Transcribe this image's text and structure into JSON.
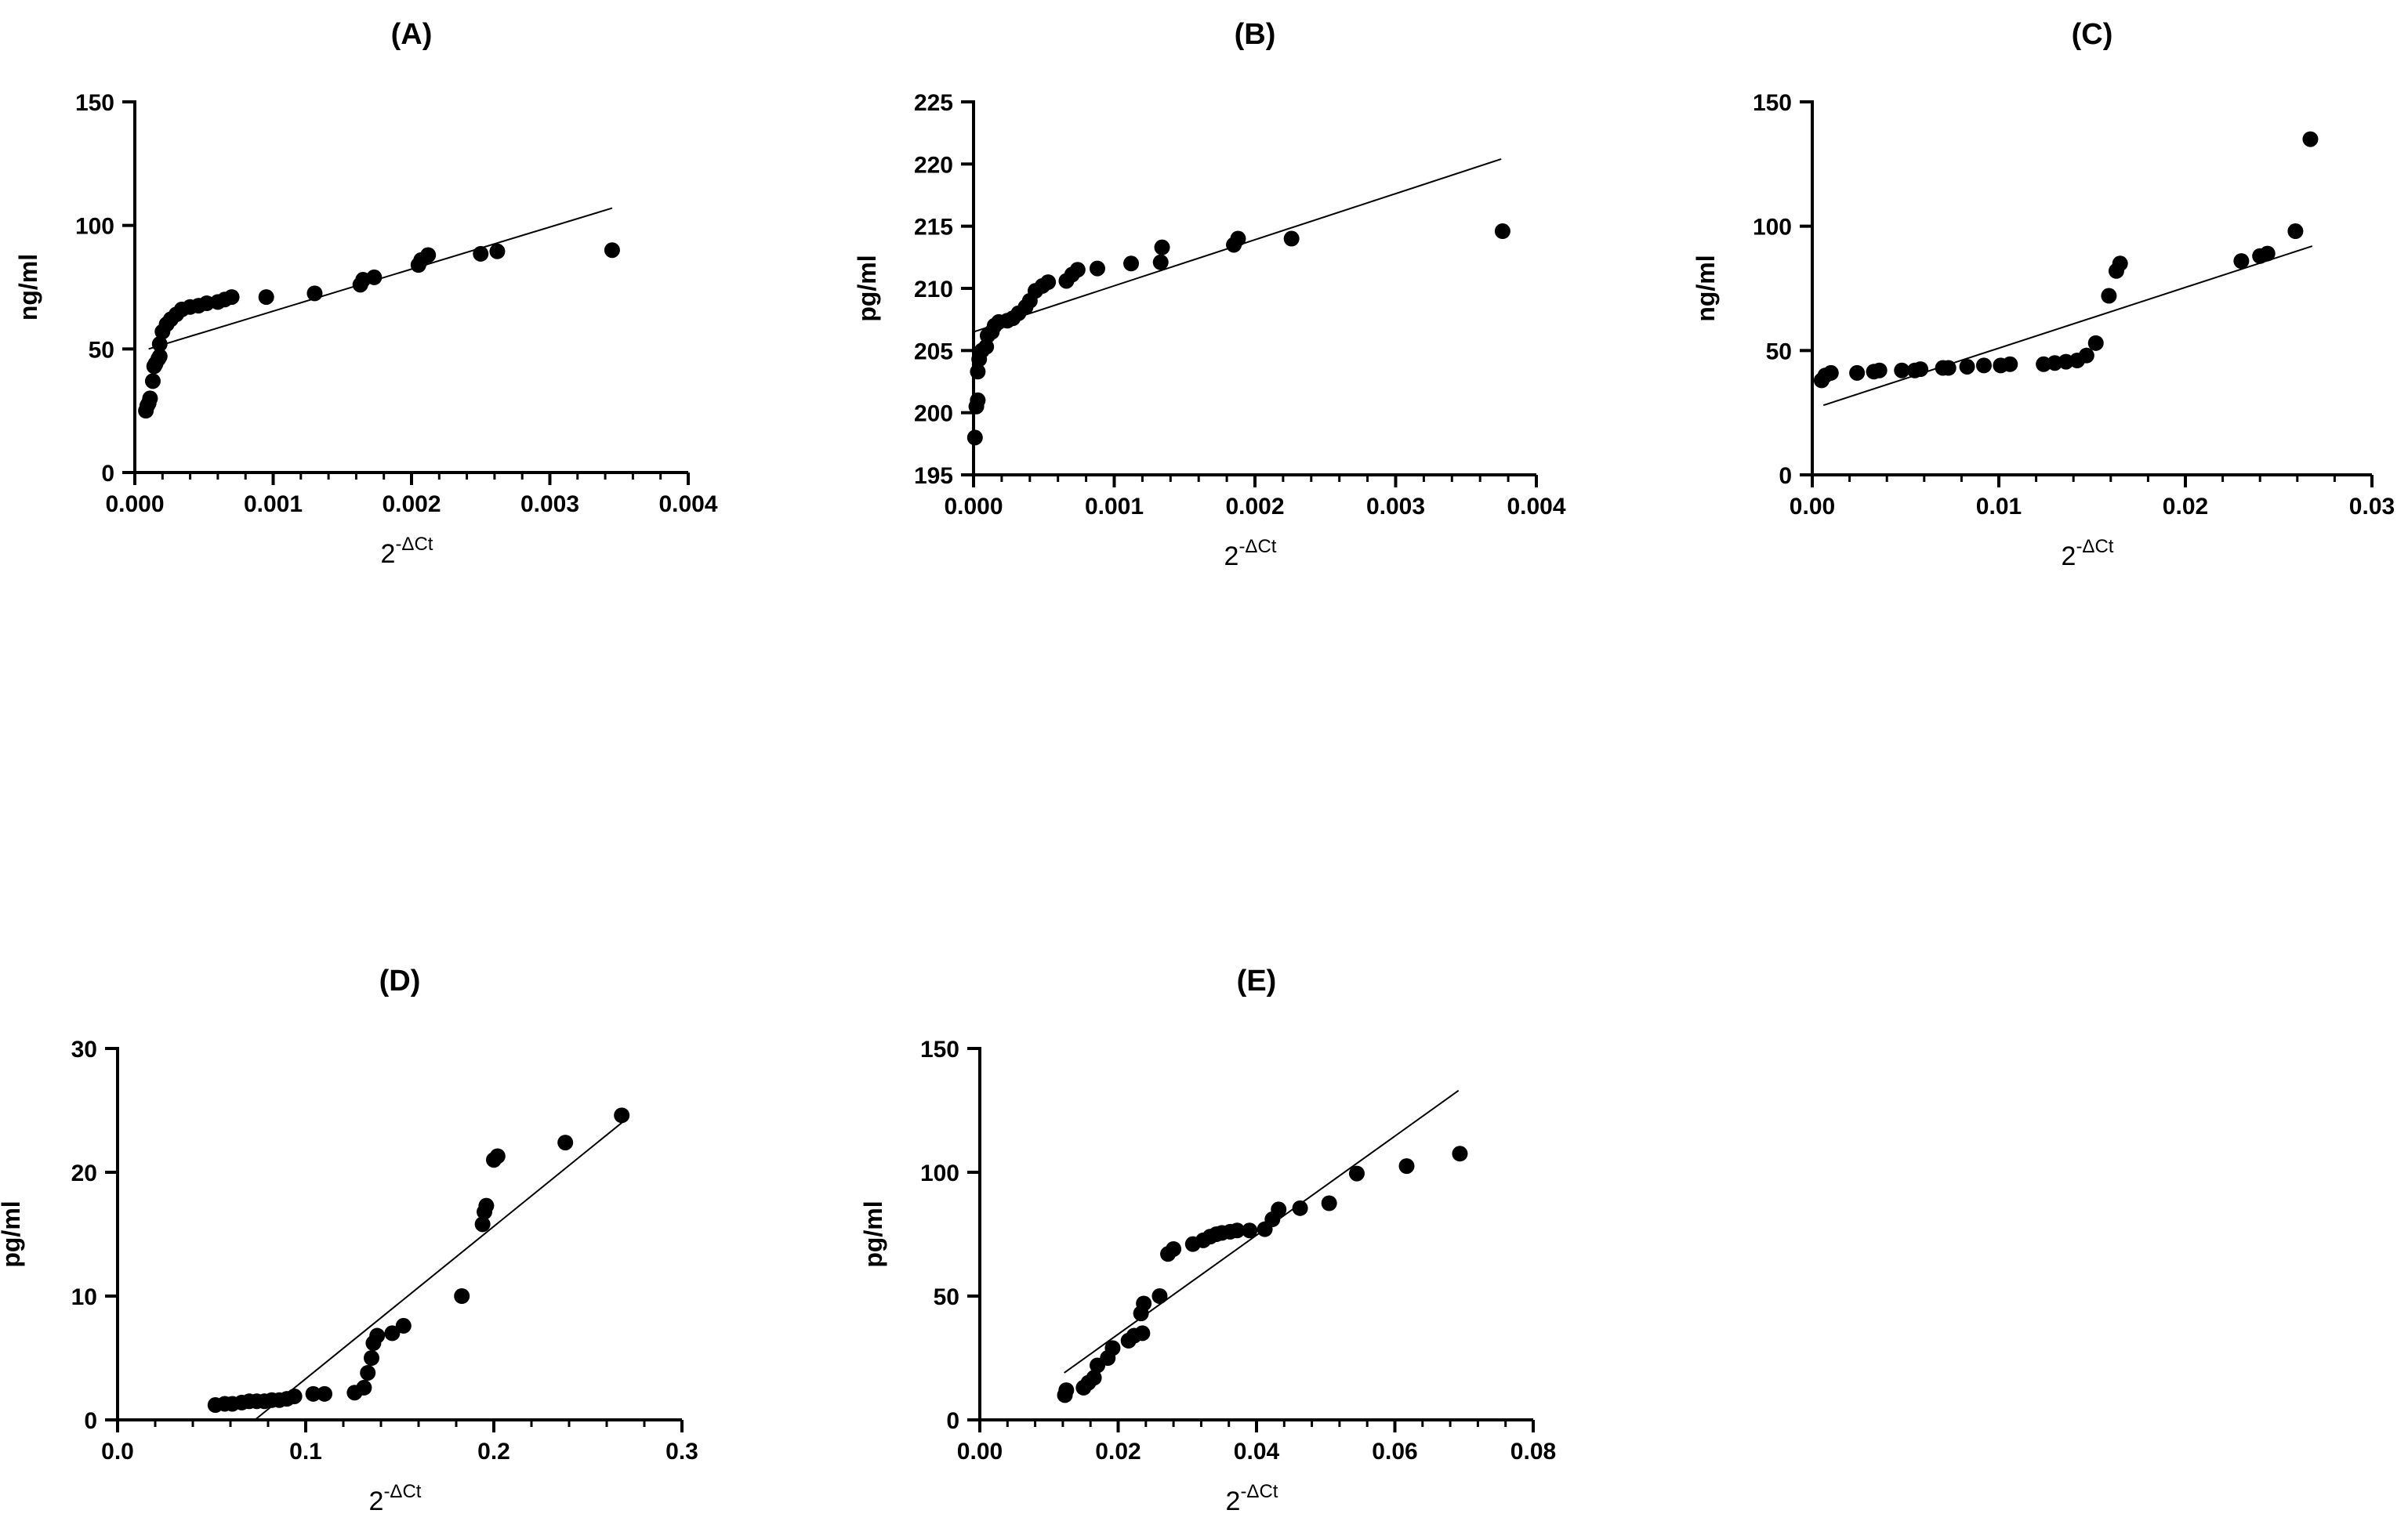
{
  "chart_data": [
    {
      "type": "scatter",
      "title": "(A)",
      "xlabel": "2",
      "xlabel_superscript": "-ΔCt",
      "ylabel": "ng/ml",
      "xlim": [
        0,
        0.004
      ],
      "ylim": [
        0,
        150
      ],
      "xticks": [
        0,
        0.001,
        0.002,
        0.003,
        0.004
      ],
      "xtick_labels": [
        "0.000",
        "0.001",
        "0.002",
        "0.003",
        "0.004"
      ],
      "yticks": [
        0,
        50,
        100,
        150
      ],
      "ytick_labels": [
        "0",
        "50",
        "100",
        "150"
      ],
      "x_minor_step": 0.0002,
      "fit_line": [
        [
          0.0001,
          50
        ],
        [
          0.00345,
          107
        ]
      ],
      "points": [
        [
          8e-05,
          25
        ],
        [
          9e-05,
          27
        ],
        [
          0.0001,
          28
        ],
        [
          0.00011,
          30
        ],
        [
          0.00013,
          37
        ],
        [
          0.00014,
          43
        ],
        [
          0.00015,
          44
        ],
        [
          0.00017,
          46
        ],
        [
          0.00018,
          47
        ],
        [
          0.00018,
          52
        ],
        [
          0.0002,
          57
        ],
        [
          0.00023,
          60
        ],
        [
          0.00026,
          62
        ],
        [
          0.0003,
          64
        ],
        [
          0.00034,
          66
        ],
        [
          0.0004,
          67
        ],
        [
          0.00046,
          67.5
        ],
        [
          0.00052,
          68.5
        ],
        [
          0.0006,
          69
        ],
        [
          0.00065,
          70
        ],
        [
          0.0007,
          71
        ],
        [
          0.00095,
          71
        ],
        [
          0.0013,
          72.5
        ],
        [
          0.00163,
          76
        ],
        [
          0.00165,
          78
        ],
        [
          0.00173,
          79
        ],
        [
          0.00205,
          84
        ],
        [
          0.00207,
          86
        ],
        [
          0.00212,
          88
        ],
        [
          0.0025,
          88.5
        ],
        [
          0.00262,
          89.5
        ],
        [
          0.00345,
          90
        ]
      ]
    },
    {
      "type": "scatter",
      "title": "(B)",
      "xlabel": "2",
      "xlabel_superscript": "-ΔCt",
      "ylabel": "pg/ml",
      "xlim": [
        0,
        0.004
      ],
      "ylim": [
        195,
        225
      ],
      "xticks": [
        0,
        0.001,
        0.002,
        0.003,
        0.004
      ],
      "xtick_labels": [
        "0.000",
        "0.001",
        "0.002",
        "0.003",
        "0.004"
      ],
      "yticks": [
        195,
        200,
        205,
        210,
        215,
        220,
        225
      ],
      "ytick_labels": [
        "195",
        "200",
        "205",
        "210",
        "215",
        "220",
        "225"
      ],
      "x_minor_step": 0.0002,
      "fit_line": [
        [
          0.0,
          206.5
        ],
        [
          0.00375,
          220.4
        ]
      ],
      "points": [
        [
          1e-05,
          198
        ],
        [
          2e-05,
          200.5
        ],
        [
          3e-05,
          201
        ],
        [
          3e-05,
          203.3
        ],
        [
          4e-05,
          204.3
        ],
        [
          6e-05,
          205
        ],
        [
          9e-05,
          205.3
        ],
        [
          0.0001,
          206.2
        ],
        [
          0.00013,
          206.5
        ],
        [
          0.00015,
          207
        ],
        [
          0.00018,
          207.3
        ],
        [
          0.00024,
          207.4
        ],
        [
          0.00028,
          207.6
        ],
        [
          0.00032,
          208
        ],
        [
          0.00037,
          208.5
        ],
        [
          0.0004,
          209
        ],
        [
          0.00044,
          209.8
        ],
        [
          0.00049,
          210.2
        ],
        [
          0.00053,
          210.5
        ],
        [
          0.00066,
          210.6
        ],
        [
          0.0007,
          211.1
        ],
        [
          0.00074,
          211.5
        ],
        [
          0.00088,
          211.6
        ],
        [
          0.00112,
          212
        ],
        [
          0.00133,
          212.1
        ],
        [
          0.00134,
          213.3
        ],
        [
          0.00185,
          213.5
        ],
        [
          0.00188,
          214
        ],
        [
          0.00226,
          214
        ],
        [
          0.00376,
          214.6
        ]
      ]
    },
    {
      "type": "scatter",
      "title": "(C)",
      "xlabel": "2",
      "xlabel_superscript": "-ΔCt",
      "ylabel": "ng/ml",
      "xlim": [
        0,
        0.03
      ],
      "ylim": [
        0,
        150
      ],
      "xticks": [
        0,
        0.01,
        0.02,
        0.03
      ],
      "xtick_labels": [
        "0.00",
        "0.01",
        "0.02",
        "0.03"
      ],
      "yticks": [
        0,
        50,
        100,
        150
      ],
      "ytick_labels": [
        "0",
        "50",
        "100",
        "150"
      ],
      "x_minor_step": 0.002,
      "fit_line": [
        [
          0.0006,
          28
        ],
        [
          0.0268,
          92
        ]
      ],
      "points": [
        [
          0.0005,
          38
        ],
        [
          0.0007,
          40
        ],
        [
          0.001,
          41
        ],
        [
          0.0024,
          41
        ],
        [
          0.0033,
          41.5
        ],
        [
          0.0036,
          42
        ],
        [
          0.0048,
          42
        ],
        [
          0.0055,
          42
        ],
        [
          0.0058,
          42.5
        ],
        [
          0.007,
          43
        ],
        [
          0.0073,
          43
        ],
        [
          0.0083,
          43.5
        ],
        [
          0.0092,
          44
        ],
        [
          0.0101,
          44
        ],
        [
          0.0106,
          44.5
        ],
        [
          0.0124,
          44.5
        ],
        [
          0.013,
          45
        ],
        [
          0.0136,
          45.5
        ],
        [
          0.0142,
          46
        ],
        [
          0.0147,
          48
        ],
        [
          0.0152,
          53
        ],
        [
          0.0159,
          72
        ],
        [
          0.0163,
          82
        ],
        [
          0.0165,
          85
        ],
        [
          0.023,
          86
        ],
        [
          0.024,
          88
        ],
        [
          0.0244,
          89
        ],
        [
          0.0259,
          98
        ],
        [
          0.0267,
          135
        ]
      ]
    },
    {
      "type": "scatter",
      "title": "(D)",
      "xlabel": "2",
      "xlabel_superscript": "-ΔCt",
      "ylabel": "pg/ml",
      "xlim": [
        0,
        0.3
      ],
      "ylim": [
        0,
        30
      ],
      "xticks": [
        0,
        0.1,
        0.2,
        0.3
      ],
      "xtick_labels": [
        "0.0",
        "0.1",
        "0.2",
        "0.3"
      ],
      "yticks": [
        0,
        10,
        20,
        30
      ],
      "ytick_labels": [
        "0",
        "10",
        "20",
        "30"
      ],
      "x_minor_step": 0.02,
      "fit_line": [
        [
          0.073,
          0
        ],
        [
          0.268,
          24
        ]
      ],
      "points": [
        [
          0.052,
          1.2
        ],
        [
          0.057,
          1.3
        ],
        [
          0.061,
          1.3
        ],
        [
          0.066,
          1.4
        ],
        [
          0.07,
          1.5
        ],
        [
          0.074,
          1.5
        ],
        [
          0.078,
          1.5
        ],
        [
          0.082,
          1.6
        ],
        [
          0.086,
          1.6
        ],
        [
          0.09,
          1.7
        ],
        [
          0.094,
          1.9
        ],
        [
          0.104,
          2.1
        ],
        [
          0.11,
          2.1
        ],
        [
          0.126,
          2.2
        ],
        [
          0.131,
          2.6
        ],
        [
          0.133,
          3.8
        ],
        [
          0.135,
          5
        ],
        [
          0.136,
          6.2
        ],
        [
          0.138,
          6.8
        ],
        [
          0.146,
          7
        ],
        [
          0.152,
          7.6
        ],
        [
          0.183,
          10
        ],
        [
          0.194,
          15.8
        ],
        [
          0.195,
          16.8
        ],
        [
          0.196,
          17.3
        ],
        [
          0.2,
          21
        ],
        [
          0.202,
          21.3
        ],
        [
          0.238,
          22.4
        ],
        [
          0.268,
          24.6
        ]
      ]
    },
    {
      "type": "scatter",
      "title": "(E)",
      "xlabel": "2",
      "xlabel_superscript": "-ΔCt",
      "ylabel": "pg/ml",
      "xlim": [
        0,
        0.08
      ],
      "ylim": [
        0,
        150
      ],
      "xticks": [
        0,
        0.02,
        0.04,
        0.06,
        0.08
      ],
      "xtick_labels": [
        "0.00",
        "0.02",
        "0.04",
        "0.06",
        "0.08"
      ],
      "yticks": [
        0,
        50,
        100,
        150
      ],
      "ytick_labels": [
        "0",
        "50",
        "100",
        "150"
      ],
      "x_minor_step": 0.004,
      "fit_line": [
        [
          0.0122,
          19
        ],
        [
          0.0692,
          133
        ]
      ],
      "points": [
        [
          0.0123,
          10
        ],
        [
          0.0125,
          12
        ],
        [
          0.015,
          13
        ],
        [
          0.0157,
          15
        ],
        [
          0.0165,
          17
        ],
        [
          0.017,
          22
        ],
        [
          0.0185,
          25
        ],
        [
          0.0192,
          29
        ],
        [
          0.0215,
          32
        ],
        [
          0.0223,
          34
        ],
        [
          0.0235,
          35
        ],
        [
          0.0233,
          43
        ],
        [
          0.0237,
          47
        ],
        [
          0.026,
          50
        ],
        [
          0.0272,
          67
        ],
        [
          0.028,
          69
        ],
        [
          0.0308,
          71
        ],
        [
          0.0323,
          72.5
        ],
        [
          0.0333,
          74
        ],
        [
          0.0342,
          75
        ],
        [
          0.035,
          75.5
        ],
        [
          0.0362,
          76
        ],
        [
          0.0372,
          76.5
        ],
        [
          0.039,
          76.5
        ],
        [
          0.0412,
          77
        ],
        [
          0.0423,
          81
        ],
        [
          0.0432,
          85
        ],
        [
          0.0463,
          85.5
        ],
        [
          0.0505,
          87.5
        ],
        [
          0.0545,
          99.5
        ],
        [
          0.0617,
          102.5
        ],
        [
          0.0694,
          107.5
        ]
      ]
    }
  ]
}
